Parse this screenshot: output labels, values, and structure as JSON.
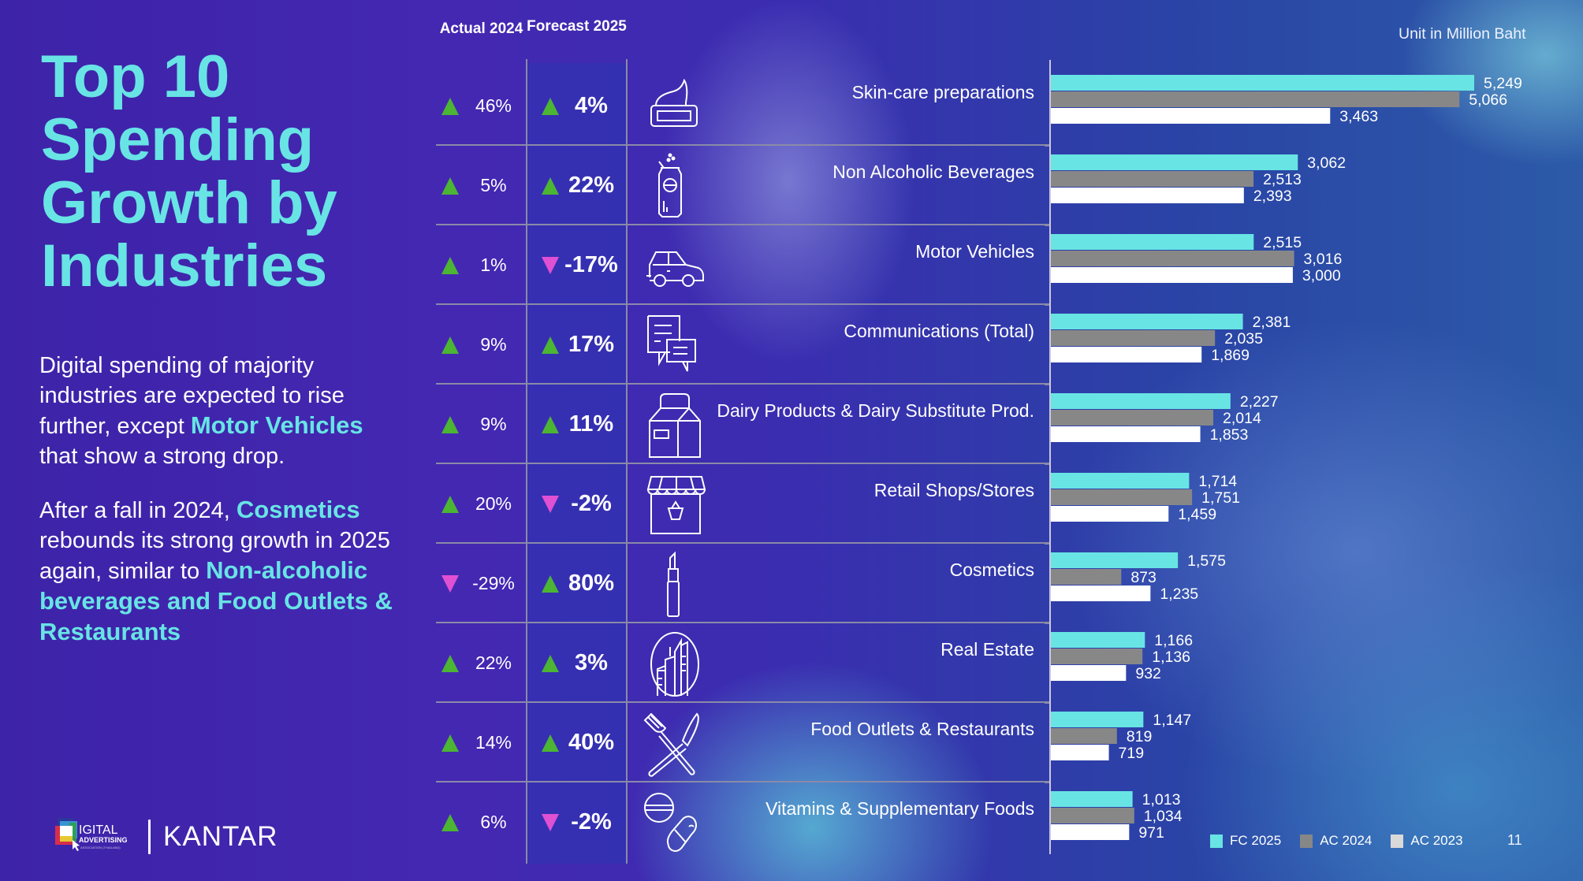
{
  "title": "Top 10 Spending Growth by Industries",
  "body": {
    "p1": [
      {
        "text": "Digital spending of majority industries are expected to rise further, except ",
        "hl": false
      },
      {
        "text": "Motor Vehicles",
        "hl": true
      },
      {
        "text": " that show a strong drop.",
        "hl": false
      }
    ],
    "p2": [
      {
        "text": "After a fall in 2024, ",
        "hl": false
      },
      {
        "text": "Cosmetics",
        "hl": true
      },
      {
        "text": " rebounds its strong growth in 2025 again, similar to ",
        "hl": false
      },
      {
        "text": "Non-alcoholic beverages and Food Outlets & Restaurants",
        "hl": true
      }
    ]
  },
  "logos": {
    "daat_line1": "IGITAL",
    "daat_line2": "ADVERTISING",
    "daat_line3": "ASSOCIATION (THAILAND)",
    "kantar": "KANTAR"
  },
  "table": {
    "header_actual": "Actual 2024",
    "header_forecast": "Forecast 2025",
    "rows": [
      {
        "industry": "Skin-care preparations",
        "icon": "cream-jar-icon",
        "actual_2024": "46%",
        "actual_dir": "up",
        "forecast_2025": "4%",
        "forecast_dir": "up"
      },
      {
        "industry": "Non Alcoholic Beverages",
        "icon": "soda-can-icon",
        "actual_2024": "5%",
        "actual_dir": "up",
        "forecast_2025": "22%",
        "forecast_dir": "up"
      },
      {
        "industry": "Motor Vehicles",
        "icon": "car-icon",
        "actual_2024": "1%",
        "actual_dir": "up",
        "forecast_2025": "-17%",
        "forecast_dir": "down"
      },
      {
        "industry": "Communications (Total)",
        "icon": "chat-bubbles-icon",
        "actual_2024": "9%",
        "actual_dir": "up",
        "forecast_2025": "17%",
        "forecast_dir": "up"
      },
      {
        "industry": "Dairy Products & Dairy Substitute Prod.",
        "icon": "milk-carton-icon",
        "actual_2024": "9%",
        "actual_dir": "up",
        "forecast_2025": "11%",
        "forecast_dir": "up"
      },
      {
        "industry": "Retail Shops/Stores",
        "icon": "storefront-icon",
        "actual_2024": "20%",
        "actual_dir": "up",
        "forecast_2025": "-2%",
        "forecast_dir": "down"
      },
      {
        "industry": "Cosmetics",
        "icon": "lipstick-icon",
        "actual_2024": "-29%",
        "actual_dir": "down",
        "forecast_2025": "80%",
        "forecast_dir": "up"
      },
      {
        "industry": "Real Estate",
        "icon": "buildings-icon",
        "actual_2024": "22%",
        "actual_dir": "up",
        "forecast_2025": "3%",
        "forecast_dir": "up"
      },
      {
        "industry": "Food Outlets & Restaurants",
        "icon": "fork-knife-icon",
        "actual_2024": "14%",
        "actual_dir": "up",
        "forecast_2025": "40%",
        "forecast_dir": "up"
      },
      {
        "industry": "Vitamins & Supplementary Foods",
        "icon": "pills-icon",
        "actual_2024": "6%",
        "actual_dir": "up",
        "forecast_2025": "-2%",
        "forecast_dir": "down"
      }
    ]
  },
  "colors": {
    "accent": "#68e4e4",
    "up": "#4cb534",
    "down": "#e050d2",
    "fc2025": "#68e4e4",
    "ac2024": "#878787",
    "ac2023": "#ffffff",
    "ac2023_legend": "#d9d9d9"
  },
  "chart_data": {
    "type": "bar",
    "orientation": "horizontal",
    "unit_label": "Unit in Million Baht",
    "categories": [
      "Skin-care preparations",
      "Non Alcoholic Beverages",
      "Motor Vehicles",
      "Communications (Total)",
      "Dairy Products & Dairy Substitute Prod.",
      "Retail Shops/Stores",
      "Cosmetics",
      "Real Estate",
      "Food Outlets & Restaurants",
      "Vitamins & Supplementary Foods"
    ],
    "series": [
      {
        "name": "FC 2025",
        "color": "#68e4e4",
        "values": [
          5249,
          3062,
          2515,
          2381,
          2227,
          1714,
          1575,
          1166,
          1147,
          1013
        ]
      },
      {
        "name": "AC 2024",
        "color": "#878787",
        "values": [
          5066,
          2513,
          3016,
          2035,
          2014,
          1751,
          873,
          1136,
          819,
          1034
        ]
      },
      {
        "name": "AC 2023",
        "color": "#ffffff",
        "legend_color": "#d9d9d9",
        "values": [
          3463,
          2393,
          3000,
          1869,
          1853,
          1459,
          1235,
          932,
          719,
          971
        ]
      }
    ],
    "xlim": [
      0,
      5249
    ],
    "grid": false,
    "legend": "bottom-right",
    "data_labels": true
  },
  "page_number": "11"
}
